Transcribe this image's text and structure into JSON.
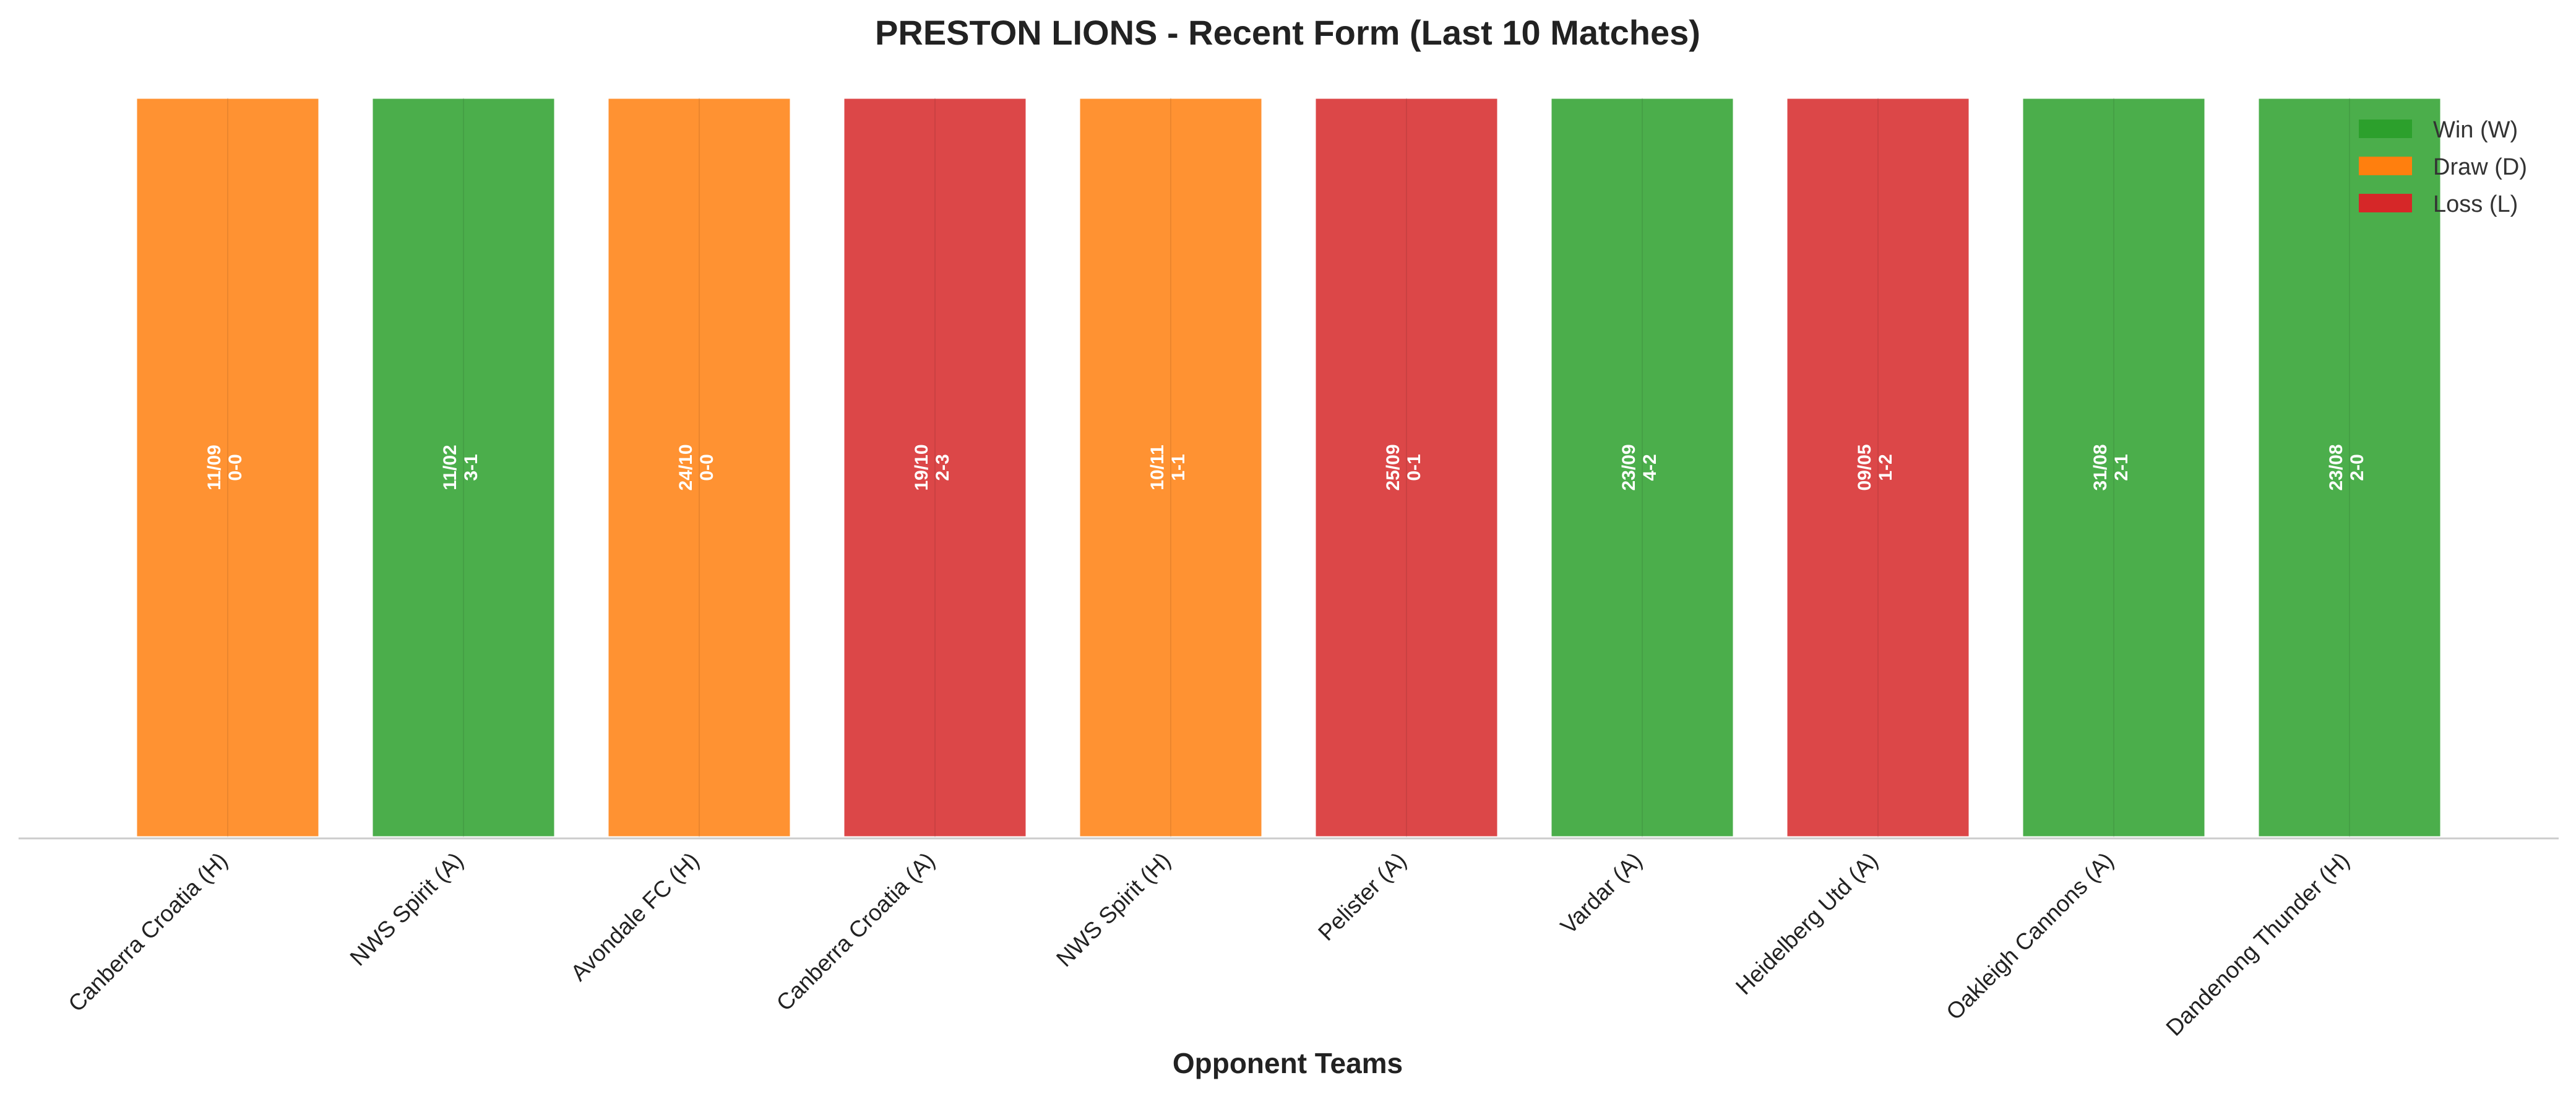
{
  "chart_data": {
    "type": "bar",
    "title": "PRESTON LIONS - Recent Form (Last 10 Matches)",
    "xlabel": "Opponent Teams",
    "ylabel": "",
    "grid": false,
    "legend_position": "top-right",
    "legend": [
      {
        "key": "W",
        "label": "Win (W)",
        "color": "#2ca02c"
      },
      {
        "key": "D",
        "label": "Draw (D)",
        "color": "#ff7f0e"
      },
      {
        "key": "L",
        "label": "Loss (L)",
        "color": "#d62728"
      }
    ],
    "categories": [
      "Canberra Croatia (H)",
      "NWS Spirit (A)",
      "Avondale FC (H)",
      "Canberra Croatia (A)",
      "NWS Spirit (H)",
      "Pelister (A)",
      "Vardar (A)",
      "Heidelberg Utd (A)",
      "Oakleigh Cannons (A)",
      "Dandenong Thunder (H)"
    ],
    "values": [
      1,
      1,
      1,
      1,
      1,
      1,
      1,
      1,
      1,
      1
    ],
    "results": [
      "D",
      "W",
      "D",
      "L",
      "D",
      "L",
      "W",
      "L",
      "W",
      "W"
    ],
    "dates": [
      "11/09",
      "11/02",
      "24/10",
      "19/10",
      "10/11",
      "25/09",
      "23/09",
      "09/05",
      "31/08",
      "23/08"
    ],
    "scores": [
      "0-0",
      "3-1",
      "0-0",
      "2-3",
      "1-1",
      "0-1",
      "4-2",
      "1-2",
      "2-1",
      "2-0"
    ],
    "ylim": [
      0,
      1
    ]
  }
}
